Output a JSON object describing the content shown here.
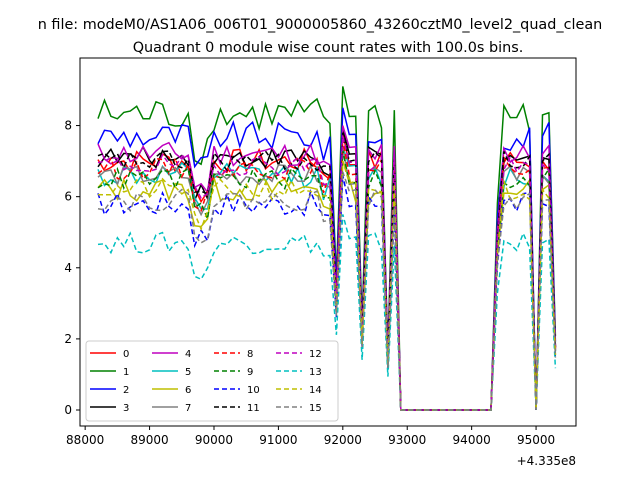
{
  "suptitle": "n file: modeM0/AS1A06_006T01_9000005860_43260cztM0_level2_quad_clean",
  "chart_data": {
    "type": "line",
    "title": "Quadrant 0 module wise count rates with 100.0s bins.",
    "xlabel": "",
    "ylabel": "",
    "x_offset_label": "+4.335e8",
    "xlim": [
      87920,
      95620
    ],
    "ylim": [
      -0.45,
      9.9
    ],
    "xticks": [
      88000,
      89000,
      90000,
      91000,
      92000,
      93000,
      94000,
      95000
    ],
    "yticks": [
      0,
      2,
      4,
      6,
      8
    ],
    "grid": false,
    "legend_position": "lower-left",
    "colors": {
      "0": "#ff0000",
      "1": "#008000",
      "2": "#0000ff",
      "3": "#000000",
      "4": "#bf00bf",
      "5": "#00bfbf",
      "6": "#bfbf00",
      "7": "#808080"
    },
    "series": [
      {
        "name": "0",
        "color": "#ff0000",
        "dash": false,
        "base": 7.0,
        "amp": 0.35
      },
      {
        "name": "1",
        "color": "#008000",
        "dash": false,
        "base": 8.3,
        "amp": 0.5
      },
      {
        "name": "2",
        "color": "#0000ff",
        "dash": false,
        "base": 7.7,
        "amp": 0.4
      },
      {
        "name": "3",
        "color": "#000000",
        "dash": false,
        "base": 7.1,
        "amp": 0.3
      },
      {
        "name": "4",
        "color": "#bf00bf",
        "dash": false,
        "base": 7.2,
        "amp": 0.35
      },
      {
        "name": "5",
        "color": "#00bfbf",
        "dash": false,
        "base": 6.6,
        "amp": 0.35
      },
      {
        "name": "6",
        "color": "#bfbf00",
        "dash": false,
        "base": 6.2,
        "amp": 0.35
      },
      {
        "name": "7",
        "color": "#808080",
        "dash": false,
        "base": 6.6,
        "amp": 0.3
      },
      {
        "name": "8",
        "color": "#ff0000",
        "dash": true,
        "base": 6.8,
        "amp": 0.3
      },
      {
        "name": "9",
        "color": "#008000",
        "dash": true,
        "base": 6.5,
        "amp": 0.3
      },
      {
        "name": "10",
        "color": "#0000ff",
        "dash": true,
        "base": 5.8,
        "amp": 0.35
      },
      {
        "name": "11",
        "color": "#000000",
        "dash": true,
        "base": 7.0,
        "amp": 0.3
      },
      {
        "name": "12",
        "color": "#bf00bf",
        "dash": true,
        "base": 6.9,
        "amp": 0.3
      },
      {
        "name": "13",
        "color": "#00bfbf",
        "dash": true,
        "base": 4.7,
        "amp": 0.3
      },
      {
        "name": "14",
        "color": "#bfbf00",
        "dash": true,
        "base": 6.2,
        "amp": 0.3
      },
      {
        "name": "15",
        "color": "#808080",
        "dash": true,
        "base": 5.9,
        "amp": 0.3
      }
    ],
    "x_start": 88200,
    "x_end": 95350,
    "bin": 100,
    "gap": [
      92900,
      94300
    ]
  }
}
